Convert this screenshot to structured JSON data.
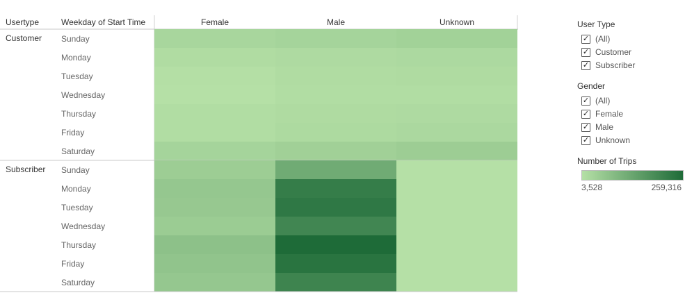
{
  "table_headers": {
    "usertype": "Usertype",
    "weekday": "Weekday of Start Time",
    "columns": [
      "Female",
      "Male",
      "Unknown"
    ]
  },
  "legend": {
    "user_type": {
      "title": "User Type",
      "options": [
        {
          "label": "(All)",
          "checked": true
        },
        {
          "label": "Customer",
          "checked": true
        },
        {
          "label": "Subscriber",
          "checked": true
        }
      ]
    },
    "gender": {
      "title": "Gender",
      "options": [
        {
          "label": "(All)",
          "checked": true
        },
        {
          "label": "Female",
          "checked": true
        },
        {
          "label": "Male",
          "checked": true
        },
        {
          "label": "Unknown",
          "checked": true
        }
      ]
    },
    "color": {
      "title": "Number of Trips",
      "min_label": "3,528",
      "max_label": "259,316",
      "min": 3528,
      "max": 259316,
      "low_color": "#b5e0a6",
      "high_color": "#1e6b38"
    }
  },
  "chart_data": {
    "type": "heatmap",
    "value_label": "Number of Trips",
    "columns": [
      "Female",
      "Male",
      "Unknown"
    ],
    "groups": [
      {
        "name": "Customer",
        "rows": [
          "Sunday",
          "Monday",
          "Tuesday",
          "Wednesday",
          "Thursday",
          "Friday",
          "Saturday"
        ],
        "values": [
          [
            25000,
            30000,
            35000
          ],
          [
            12000,
            16000,
            18000
          ],
          [
            6000,
            12000,
            14000
          ],
          [
            4000,
            10000,
            11000
          ],
          [
            10000,
            14000,
            16000
          ],
          [
            11000,
            17000,
            20000
          ],
          [
            30000,
            38000,
            45000
          ]
        ]
      },
      {
        "name": "Subscriber",
        "rows": [
          "Sunday",
          "Monday",
          "Tuesday",
          "Wednesday",
          "Thursday",
          "Friday",
          "Saturday"
        ],
        "values": [
          [
            45000,
            120000,
            3528
          ],
          [
            58000,
            220000,
            3528
          ],
          [
            55000,
            230000,
            3528
          ],
          [
            48000,
            200000,
            3528
          ],
          [
            72000,
            259316,
            3528
          ],
          [
            65000,
            240000,
            3528
          ],
          [
            58000,
            205000,
            3528
          ]
        ]
      }
    ]
  }
}
